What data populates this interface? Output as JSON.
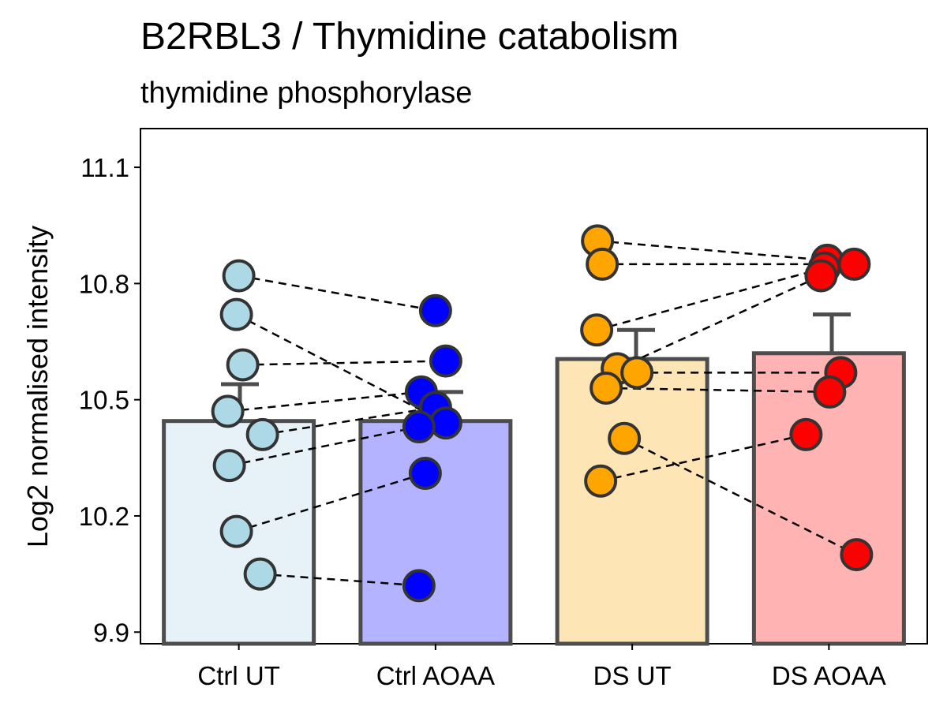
{
  "chart_data": {
    "type": "bar",
    "title": "B2RBL3 / Thymidine catabolism",
    "subtitle": "thymidine phosphorylase",
    "xlabel": "",
    "ylabel": "Log2 normalised intensity",
    "ylim": [
      9.87,
      11.2
    ],
    "yticks": [
      9.9,
      10.2,
      10.5,
      10.8,
      11.1
    ],
    "ytick_labels": [
      "9.9",
      "10.2",
      "10.5",
      "10.8",
      "11.1"
    ],
    "grid": false,
    "legend": "none",
    "categories": [
      "Ctrl UT",
      "Ctrl AOAA",
      "DS UT",
      "DS AOAA"
    ],
    "bar_values": [
      10.445,
      10.445,
      10.605,
      10.62
    ],
    "error_upper": [
      10.54,
      10.52,
      10.68,
      10.72
    ],
    "bar_colors": [
      "#e6f2f8",
      "#b3b3ff",
      "#fde5b6",
      "#ffb3b3"
    ],
    "point_colors": [
      "#add8e6",
      "#0000ff",
      "#ffa500",
      "#ff0000"
    ],
    "outline_color": "#4d4d4d",
    "points": [
      [
        10.82,
        10.72,
        10.59,
        10.47,
        10.41,
        10.33,
        10.16,
        10.05
      ],
      [
        10.73,
        10.6,
        10.52,
        10.48,
        10.44,
        10.43,
        10.31,
        10.02
      ],
      [
        10.91,
        10.85,
        10.68,
        10.58,
        10.57,
        10.53,
        10.4,
        10.29
      ],
      [
        10.86,
        10.85,
        10.84,
        10.82,
        10.57,
        10.52,
        10.41,
        10.1
      ]
    ],
    "paired_lines": [
      {
        "from": [
          0,
          10.82
        ],
        "to": [
          1,
          10.73
        ]
      },
      {
        "from": [
          0,
          10.72
        ],
        "to": [
          1,
          10.44
        ]
      },
      {
        "from": [
          0,
          10.59
        ],
        "to": [
          1,
          10.6
        ]
      },
      {
        "from": [
          0,
          10.47
        ],
        "to": [
          1,
          10.52
        ]
      },
      {
        "from": [
          0,
          10.41
        ],
        "to": [
          1,
          10.48
        ]
      },
      {
        "from": [
          0,
          10.33
        ],
        "to": [
          1,
          10.43
        ]
      },
      {
        "from": [
          0,
          10.16
        ],
        "to": [
          1,
          10.31
        ]
      },
      {
        "from": [
          0,
          10.05
        ],
        "to": [
          1,
          10.02
        ]
      },
      {
        "from": [
          2,
          10.91
        ],
        "to": [
          3,
          10.86
        ]
      },
      {
        "from": [
          2,
          10.85
        ],
        "to": [
          3,
          10.85
        ]
      },
      {
        "from": [
          2,
          10.68
        ],
        "to": [
          3,
          10.84
        ]
      },
      {
        "from": [
          2,
          10.58
        ],
        "to": [
          3,
          10.82
        ]
      },
      {
        "from": [
          2,
          10.57
        ],
        "to": [
          3,
          10.57
        ]
      },
      {
        "from": [
          2,
          10.53
        ],
        "to": [
          3,
          10.52
        ]
      },
      {
        "from": [
          2,
          10.4
        ],
        "to": [
          3,
          10.1
        ]
      },
      {
        "from": [
          2,
          10.29
        ],
        "to": [
          3,
          10.41
        ]
      }
    ]
  }
}
